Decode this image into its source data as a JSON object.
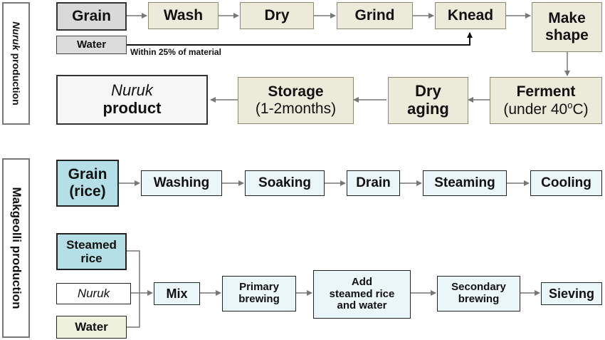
{
  "nuruk_section": {
    "label_italic": "Nuruk",
    "label_rest": " production",
    "grain": "Grain",
    "water": "Water",
    "note": "Within 25% of material",
    "wash": "Wash",
    "dry": "Dry",
    "grind": "Grind",
    "knead": "Knead",
    "make_shape_1": "Make",
    "make_shape_2": "shape",
    "ferment_1": "Ferment",
    "ferment_2a": "(under 40",
    "ferment_2sup": "o",
    "ferment_2b": "C)",
    "dry_aging_1": "Dry",
    "dry_aging_2": "aging",
    "storage_1": "Storage",
    "storage_2": "(1-2months)",
    "product_1": "Nuruk",
    "product_2": "product"
  },
  "makgeolli_section": {
    "label": "Makgeolli production",
    "grain_rice_1": "Grain",
    "grain_rice_2": "(rice)",
    "washing": "Washing",
    "soaking": "Soaking",
    "drain": "Drain",
    "steaming": "Steaming",
    "cooling": "Cooling",
    "steamed_rice_1": "Steamed",
    "steamed_rice_2": "rice",
    "nuruk": "Nuruk",
    "water": "Water",
    "mix": "Mix",
    "primary_1": "Primary",
    "primary_2": "brewing",
    "add_1": "Add",
    "add_2": "steamed rice",
    "add_3": "and water",
    "secondary_1": "Secondary",
    "secondary_2": "brewing",
    "sieving": "Sieving"
  },
  "colors": {
    "beige": "#ecebd9",
    "gray": "#d9d9d9",
    "cyan_dark": "#b5dfe6",
    "cyan_light": "#ebf6f9",
    "water_fill": "#eef2dc",
    "arrow": "#777777"
  }
}
